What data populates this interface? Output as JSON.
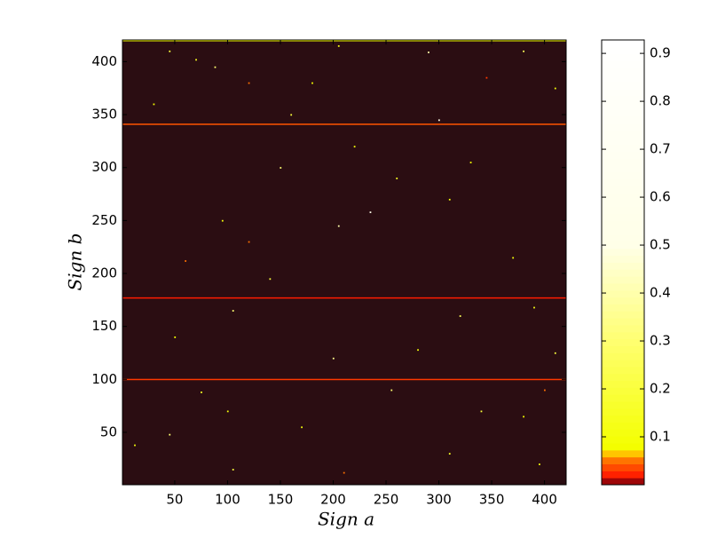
{
  "chart_data": {
    "type": "heatmap",
    "xlabel": "Sign a",
    "ylabel": "Sign b",
    "xlim": [
      0.5,
      420.5
    ],
    "ylim": [
      0.5,
      420.5
    ],
    "xticks": [
      50,
      100,
      150,
      200,
      250,
      300,
      350,
      400
    ],
    "yticks": [
      50,
      100,
      150,
      200,
      250,
      300,
      350,
      400
    ],
    "clim": [
      0,
      0.928
    ],
    "cticks": [
      0.1,
      0.2,
      0.3,
      0.4,
      0.5,
      0.6,
      0.7,
      0.8,
      0.9
    ],
    "colorscale": [
      [
        0,
        "#000000"
      ],
      [
        0.004,
        "#2b0d12"
      ],
      [
        0.01,
        "#ff0000"
      ],
      [
        0.05,
        "#ff7000"
      ],
      [
        0.07,
        "#ffe000"
      ],
      [
        0.08,
        "#f4ff00"
      ],
      [
        0.3,
        "#ffff70"
      ],
      [
        0.5,
        "#ffffe8"
      ],
      [
        0.928,
        "#ffffff"
      ]
    ],
    "background": 0.004,
    "rows": [
      {
        "y": 100,
        "value": 0.03
      },
      {
        "y": 341,
        "value": 0.04
      },
      {
        "y": 420,
        "value": 0.08
      },
      {
        "y": 177,
        "value": 0.02
      }
    ],
    "cells": [
      [
        12,
        38,
        0.1
      ],
      [
        45,
        410,
        0.2
      ],
      [
        70,
        402,
        0.15
      ],
      [
        88,
        395,
        0.3
      ],
      [
        120,
        380,
        0.05
      ],
      [
        205,
        415,
        0.12
      ],
      [
        290,
        409,
        0.4
      ],
      [
        345,
        385,
        0.03
      ],
      [
        380,
        410,
        0.25
      ],
      [
        410,
        375,
        0.1
      ],
      [
        30,
        360,
        0.08
      ],
      [
        160,
        350,
        0.2
      ],
      [
        300,
        345,
        0.5
      ],
      [
        220,
        320,
        0.1
      ],
      [
        150,
        300,
        0.3
      ],
      [
        260,
        290,
        0.15
      ],
      [
        330,
        305,
        0.08
      ],
      [
        235,
        258,
        0.6
      ],
      [
        205,
        245,
        0.4
      ],
      [
        95,
        250,
        0.1
      ],
      [
        60,
        212,
        0.05
      ],
      [
        140,
        195,
        0.2
      ],
      [
        370,
        215,
        0.1
      ],
      [
        105,
        165,
        0.3
      ],
      [
        320,
        160,
        0.25
      ],
      [
        390,
        168,
        0.12
      ],
      [
        50,
        140,
        0.08
      ],
      [
        200,
        120,
        0.35
      ],
      [
        280,
        128,
        0.1
      ],
      [
        410,
        125,
        0.2
      ],
      [
        75,
        88,
        0.15
      ],
      [
        255,
        90,
        0.3
      ],
      [
        400,
        90,
        0.05
      ],
      [
        100,
        70,
        0.1
      ],
      [
        340,
        70,
        0.2
      ],
      [
        380,
        65,
        0.08
      ],
      [
        45,
        48,
        0.3
      ],
      [
        170,
        55,
        0.1
      ],
      [
        310,
        30,
        0.15
      ],
      [
        105,
        15,
        0.2
      ],
      [
        210,
        12,
        0.05
      ],
      [
        395,
        20,
        0.1
      ],
      [
        180,
        380,
        0.08
      ],
      [
        310,
        270,
        0.1
      ],
      [
        120,
        230,
        0.05
      ]
    ]
  }
}
